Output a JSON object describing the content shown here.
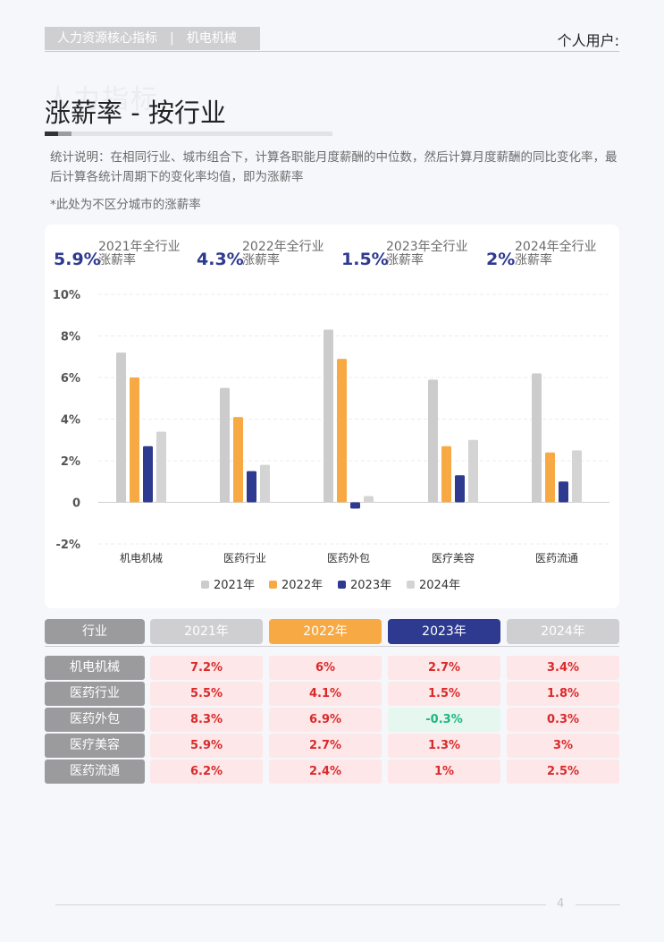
{
  "header": {
    "tag": "人力资源核心指标　|　机电机械",
    "user": "个人用户:"
  },
  "watermark": "人力指标",
  "page_title": "涨薪率 - 按行业",
  "description": "统计说明：在相同行业、城市组合下，计算各职能月度薪酬的中位数，然后计算月度薪酬的同比变化率，最后计算各统计周期下的变化率均值，即为涨薪率",
  "note": "*此处为不区分城市的涨薪率",
  "summary": [
    {
      "value": "5.9%",
      "label1": "2021年全行业",
      "label2": "涨薪率"
    },
    {
      "value": "4.3%",
      "label1": "2022年全行业",
      "label2": "涨薪率"
    },
    {
      "value": "1.5%",
      "label1": "2023年全行业",
      "label2": "涨薪率"
    },
    {
      "value": "2%",
      "label1": "2024年全行业",
      "label2": "涨薪率"
    }
  ],
  "chart_data": {
    "type": "bar",
    "categories": [
      "机电机械",
      "医药行业",
      "医药外包",
      "医疗美容",
      "医药流通"
    ],
    "series": [
      {
        "name": "2021年",
        "color": "#cccccc",
        "values": [
          7.2,
          5.5,
          8.3,
          5.9,
          6.2
        ]
      },
      {
        "name": "2022年",
        "color": "#f7a944",
        "values": [
          6,
          4.1,
          6.9,
          2.7,
          2.4
        ]
      },
      {
        "name": "2023年",
        "color": "#2e3a8f",
        "values": [
          2.7,
          1.5,
          -0.3,
          1.3,
          1
        ]
      },
      {
        "name": "2024年",
        "color": "#d4d4d4",
        "values": [
          3.4,
          1.8,
          0.3,
          3,
          2.5
        ]
      }
    ],
    "y_ticks": [
      "10%",
      "8%",
      "6%",
      "4%",
      "2%",
      "0",
      "-2%"
    ],
    "ylim": [
      -2,
      10
    ],
    "grid": true,
    "legend_position": "bottom"
  },
  "table": {
    "headers": [
      {
        "label": "行业",
        "color": "#9b9b9d"
      },
      {
        "label": "2021年",
        "color": "#cfcfd1"
      },
      {
        "label": "2022年",
        "color": "#f7a944"
      },
      {
        "label": "2023年",
        "color": "#2e3a8f"
      },
      {
        "label": "2024年",
        "color": "#cfcfd1"
      }
    ],
    "rows": [
      {
        "industry": "机电机械",
        "values": [
          "7.2%",
          "6%",
          "2.7%",
          "3.4%"
        ]
      },
      {
        "industry": "医药行业",
        "values": [
          "5.5%",
          "4.1%",
          "1.5%",
          "1.8%"
        ]
      },
      {
        "industry": "医药外包",
        "values": [
          "8.3%",
          "6.9%",
          "-0.3%",
          "0.3%"
        ]
      },
      {
        "industry": "医疗美容",
        "values": [
          "5.9%",
          "2.7%",
          "1.3%",
          "3%"
        ]
      },
      {
        "industry": "医药流通",
        "values": [
          "6.2%",
          "2.4%",
          "1%",
          "2.5%"
        ]
      }
    ]
  },
  "page_number": "4"
}
